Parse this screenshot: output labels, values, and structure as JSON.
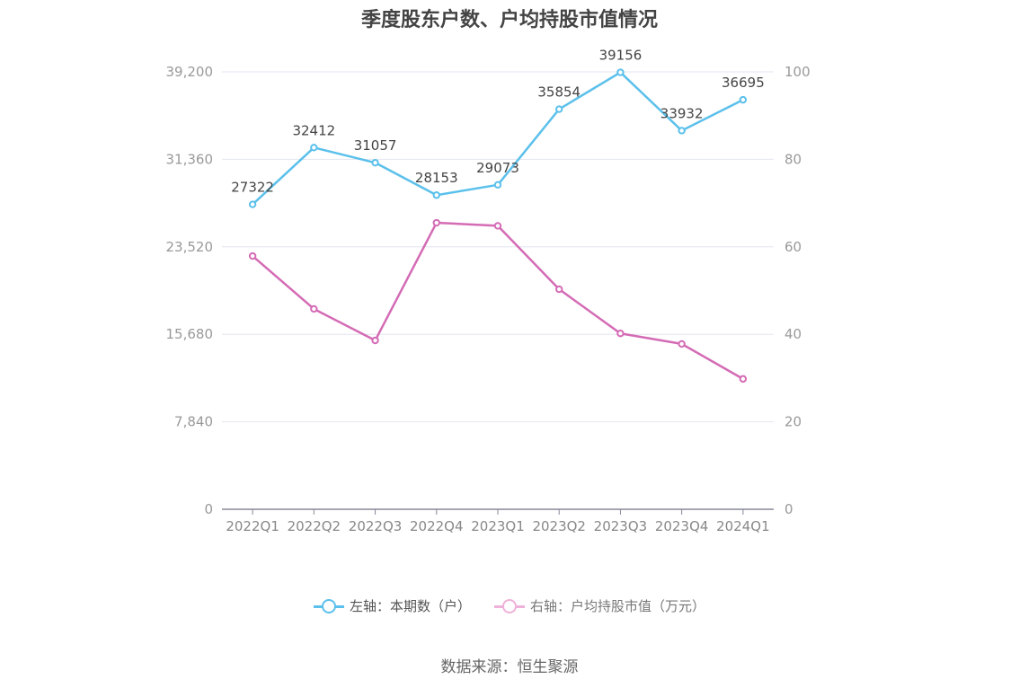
{
  "chart_data": {
    "type": "line",
    "title": "季度股东户数、户均持股市值情况",
    "categories": [
      "2022Q1",
      "2022Q2",
      "2022Q3",
      "2022Q4",
      "2023Q1",
      "2023Q2",
      "2023Q3",
      "2023Q4",
      "2024Q1"
    ],
    "left_axis": {
      "ticks": [
        "0",
        "7,840",
        "15,680",
        "23,520",
        "31,360",
        "39,200"
      ],
      "ylim": [
        0,
        39200
      ]
    },
    "right_axis": {
      "ticks": [
        "0",
        "20",
        "40",
        "60",
        "80",
        "100"
      ],
      "ylim": [
        0,
        100
      ]
    },
    "series": [
      {
        "name": "左轴：本期数（户）",
        "axis": "left",
        "color": "#5bc0eb",
        "values": [
          27322,
          32412,
          31057,
          28153,
          29073,
          35854,
          39156,
          33932,
          36695
        ],
        "labels": [
          "27322",
          "32412",
          "31057",
          "28153",
          "29073",
          "35854",
          "39156",
          "33932",
          "36695"
        ]
      },
      {
        "name": "右轴：户均持股市值（万元）",
        "axis": "right",
        "color": "#d46bb5",
        "values": [
          57.9,
          45.8,
          38.6,
          65.5,
          64.8,
          50.3,
          40.2,
          37.8,
          29.8
        ]
      }
    ],
    "legend_position": "bottom-center",
    "grid": true
  },
  "footer": {
    "source": "数据来源：恒生聚源"
  },
  "legend_colors": {
    "series0_light": "#5bc0eb",
    "series1_light": "#efb1d9"
  }
}
